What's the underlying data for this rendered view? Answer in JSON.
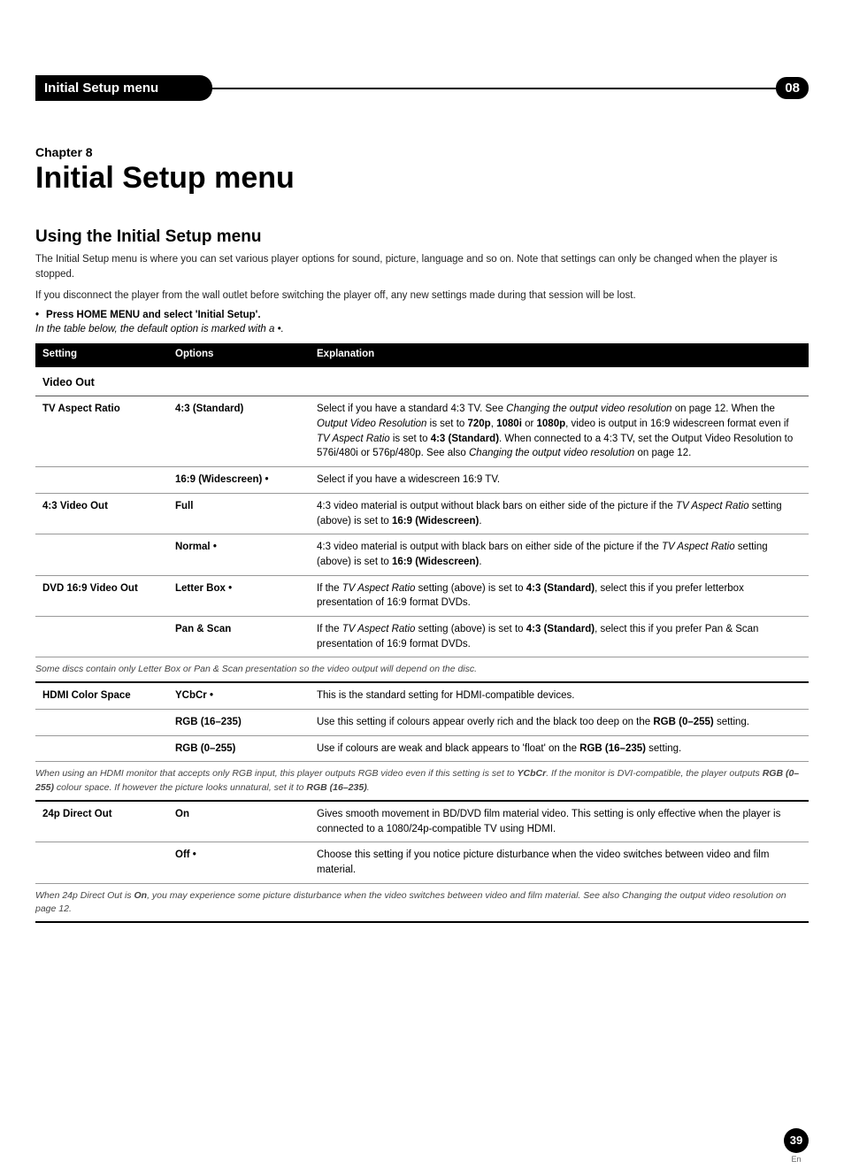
{
  "header": {
    "title": "Initial Setup menu",
    "badge": "08"
  },
  "chapter": {
    "label": "Chapter 8",
    "title": "Initial Setup menu"
  },
  "section": {
    "title": "Using the Initial Setup menu",
    "intro1": "The Initial Setup menu is where you can set various player options for sound, picture, language and so on. Note that settings can only be changed when the player is stopped.",
    "intro2": "If you disconnect the player from the wall outlet before switching the player off, any new settings made during that session will be lost.",
    "bullet": "Press HOME MENU and select 'Initial Setup'.",
    "italic_hint": "In the table below, the default option is marked with a •."
  },
  "table": {
    "headers": {
      "setting": "Setting",
      "options": "Options",
      "explanation": "Explanation"
    },
    "section_label": "Video Out",
    "rows": [
      {
        "setting": "TV Aspect Ratio",
        "option": "4:3 (Standard)",
        "explanation_pre": "Select if you have a standard 4:3 TV. See ",
        "explanation_em1": "Changing the output video resolution",
        "explanation_mid1": " on page 12. When the ",
        "explanation_em2": "Output Video Resolution",
        "explanation_mid2": " is set to ",
        "explanation_b1": "720p",
        "explanation_mid3": ", ",
        "explanation_b2": "1080i",
        "explanation_mid4": " or ",
        "explanation_b3": "1080p",
        "explanation_mid5": ", video is output in 16:9 widescreen format even if ",
        "explanation_em3": "TV Aspect Ratio",
        "explanation_mid6": " is set to ",
        "explanation_b4": "4:3 (Standard)",
        "explanation_mid7": ". When connected to a 4:3 TV, set the Output Video Resolution to 576i/480i or 576p/480p. See also ",
        "explanation_em4": "Changing the output video resolution",
        "explanation_post": " on page 12."
      },
      {
        "setting": "",
        "option": "16:9 (Widescreen) •",
        "explanation": "Select if you have a widescreen 16:9 TV."
      },
      {
        "setting": "4:3 Video Out",
        "option": "Full",
        "explanation_pre": "4:3 video material is output without black bars on either side of the picture if the ",
        "explanation_em1": "TV Aspect Ratio",
        "explanation_mid1": " setting (above) is set to ",
        "explanation_b1": "16:9 (Widescreen)",
        "explanation_post": "."
      },
      {
        "setting": "",
        "option": "Normal •",
        "explanation_pre": "4:3 video material is output with black bars on either side of the picture if the ",
        "explanation_em1": "TV Aspect Ratio",
        "explanation_mid1": " setting (above) is set to ",
        "explanation_b1": "16:9 (Widescreen)",
        "explanation_post": "."
      },
      {
        "setting": "DVD 16:9 Video Out",
        "option": "Letter Box •",
        "explanation_pre": "If the ",
        "explanation_em1": "TV Aspect Ratio",
        "explanation_mid1": " setting (above) is set to ",
        "explanation_b1": "4:3 (Standard)",
        "explanation_post": ", select this if you prefer letterbox presentation of 16:9 format DVDs."
      },
      {
        "setting": "",
        "option": "Pan & Scan",
        "explanation_pre": "If the ",
        "explanation_em1": "TV Aspect Ratio",
        "explanation_mid1": " setting (above) is set to ",
        "explanation_b1": "4:3 (Standard)",
        "explanation_post": ", select this if you prefer Pan & Scan presentation of 16:9 format DVDs."
      }
    ],
    "note1": "Some discs contain only Letter Box or Pan & Scan presentation so the video output will depend on the disc.",
    "rows2": [
      {
        "setting": "HDMI Color Space",
        "option": "YCbCr •",
        "explanation": "This is the standard setting for HDMI-compatible devices."
      },
      {
        "setting": "",
        "option": "RGB (16–235)",
        "explanation_pre": "Use this setting if colours appear overly rich and the black too deep on the ",
        "explanation_b1": "RGB (0–255)",
        "explanation_post": " setting."
      },
      {
        "setting": "",
        "option": "RGB (0–255)",
        "explanation_pre": "Use if colours are weak and black appears to 'float' on the ",
        "explanation_b1": "RGB (16–235)",
        "explanation_post": " setting."
      }
    ],
    "note2_pre": "When using an HDMI monitor that accepts only RGB input, this player outputs RGB video even if this setting is set to ",
    "note2_b1": "YCbCr",
    "note2_mid": ". If the monitor is DVI-compatible, the player outputs ",
    "note2_b2": "RGB (0–255)",
    "note2_mid2": " colour space. If however the picture looks unnatural, set it to ",
    "note2_b3": "RGB (16–235)",
    "note2_post": ".",
    "rows3": [
      {
        "setting": "24p Direct Out",
        "option": "On",
        "explanation": "Gives smooth movement in BD/DVD film material video. This setting is only effective when the player is connected to a 1080/24p-compatible TV using HDMI."
      },
      {
        "setting": "",
        "option": "Off •",
        "explanation": "Choose this setting if you notice picture disturbance when the video switches between video and film material."
      }
    ],
    "note3_pre": "When 24p Direct Out is ",
    "note3_b1": "On",
    "note3_post": ", you may experience some picture disturbance when the video switches between video and film material. See also Changing the output video resolution on page 12."
  },
  "footer": {
    "page": "39",
    "lang": "En"
  }
}
